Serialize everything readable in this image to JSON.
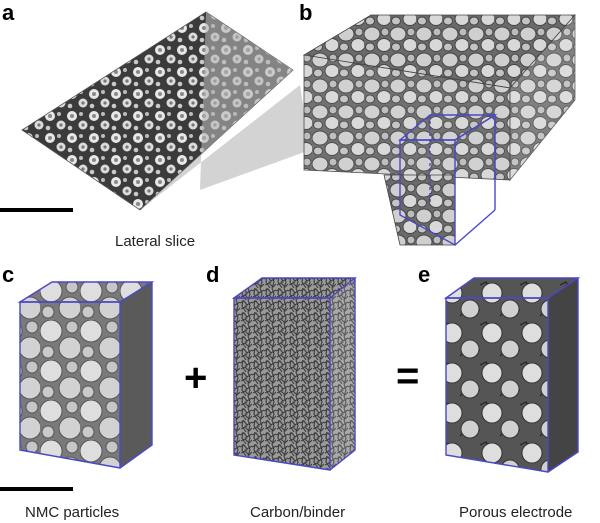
{
  "panels": {
    "a": {
      "label": "a",
      "caption": "Lateral slice"
    },
    "b": {
      "label": "b"
    },
    "c": {
      "label": "c",
      "caption": "NMC particles"
    },
    "d": {
      "label": "d",
      "caption": "Carbon/binder"
    },
    "e": {
      "label": "e",
      "caption": "Porous electrode"
    }
  },
  "operators": {
    "plus": "+",
    "equals": "="
  },
  "colors": {
    "box_edge": "#4a48c8",
    "background": "#ffffff",
    "scalebar": "#000000"
  },
  "icons": [
    "scale-bar",
    "bounding-box"
  ]
}
